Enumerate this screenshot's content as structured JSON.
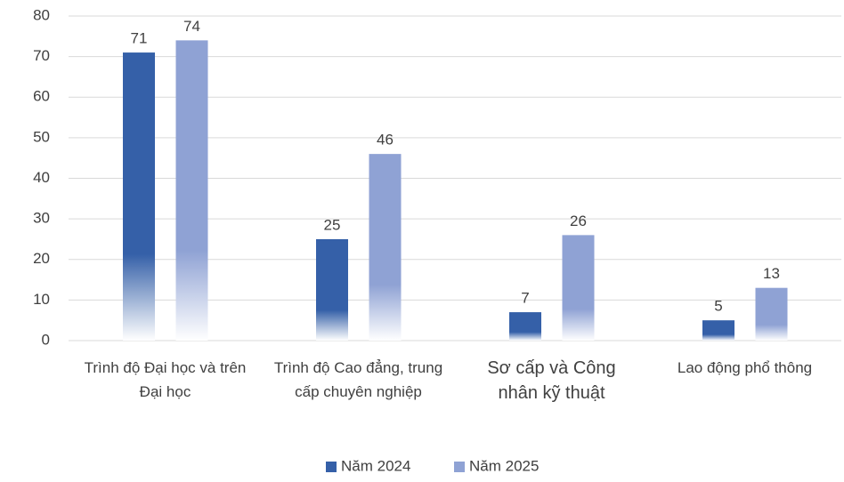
{
  "chart_data": {
    "type": "bar",
    "categories": [
      "Trình độ Đại học và trên Đại học",
      "Trình độ Cao đẳng, trung cấp chuyên nghiệp",
      "Sơ cấp và Công nhân kỹ thuật",
      "Lao động phổ thông"
    ],
    "series": [
      {
        "name": "Năm 2024",
        "color": "#3560a8",
        "values": [
          71,
          25,
          7,
          5
        ]
      },
      {
        "name": "Năm 2025",
        "color": "#8fa2d4",
        "values": [
          74,
          46,
          26,
          13
        ]
      }
    ],
    "ylim": [
      0,
      80
    ],
    "yticks": [
      0,
      10,
      20,
      30,
      40,
      50,
      60,
      70,
      80
    ],
    "grid": true,
    "legend": "bottom"
  }
}
